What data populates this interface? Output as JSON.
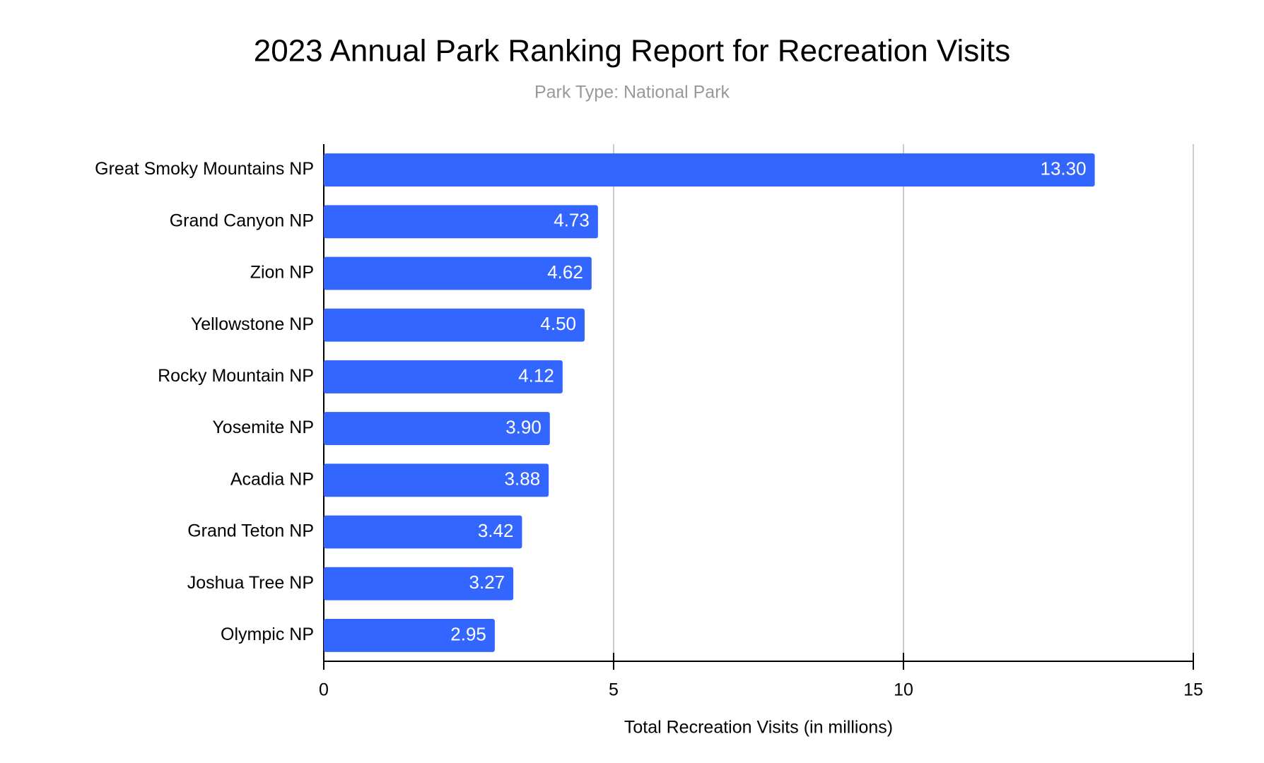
{
  "chart_data": {
    "type": "bar",
    "orientation": "horizontal",
    "title": "2023 Annual Park Ranking Report for Recreation Visits",
    "subtitle": "Park Type: National Park",
    "x_label": "Total Recreation Visits (in millions)",
    "categories": [
      "Great Smoky Mountains NP",
      "Grand Canyon NP",
      "Zion NP",
      "Yellowstone NP",
      "Rocky Mountain NP",
      "Yosemite NP",
      "Acadia NP",
      "Grand Teton NP",
      "Joshua Tree NP",
      "Olympic NP"
    ],
    "values": [
      13.3,
      4.73,
      4.62,
      4.5,
      4.12,
      3.9,
      3.88,
      3.42,
      3.27,
      2.95
    ],
    "value_labels": [
      "13.30",
      "4.73",
      "4.62",
      "4.50",
      "4.12",
      "3.90",
      "3.88",
      "3.42",
      "3.27",
      "2.95"
    ],
    "color": "#3366ff",
    "xlim": [
      0,
      15
    ],
    "xticks": [
      0,
      5,
      10,
      15
    ],
    "grid": true
  }
}
